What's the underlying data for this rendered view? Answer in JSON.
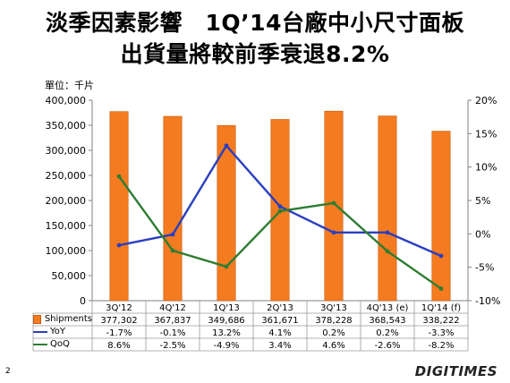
{
  "title_line1": "淡季因素影響　1Q’14台廠中小尺寸面板",
  "title_line2": "出貨量將較前季衰退8.2%",
  "unit_label": "單位：千片",
  "page_number": "2",
  "logo_text": "DIGITIMES",
  "chart_data": {
    "type": "bar",
    "categories": [
      "3Q'12",
      "4Q'12",
      "1Q'13",
      "2Q'13",
      "3Q'13",
      "4Q'13 (e)",
      "1Q'14 (f)"
    ],
    "series": [
      {
        "name": "Shipments",
        "type": "bar",
        "axis": "left",
        "color": "#f47b20",
        "values": [
          377302,
          367837,
          349686,
          361671,
          378228,
          368543,
          338222
        ],
        "labels": [
          "377,302",
          "367,837",
          "349,686",
          "361,671",
          "378,228",
          "368,543",
          "338,222"
        ]
      },
      {
        "name": "YoY",
        "type": "line",
        "axis": "right",
        "color": "#2a3fbf",
        "values": [
          -1.7,
          -0.1,
          13.2,
          4.1,
          0.2,
          0.2,
          -3.3
        ],
        "labels": [
          "-1.7%",
          "-0.1%",
          "13.2%",
          "4.1%",
          "0.2%",
          "0.2%",
          "-3.3%"
        ]
      },
      {
        "name": "QoQ",
        "type": "line",
        "axis": "right",
        "color": "#2e7d32",
        "values": [
          8.6,
          -2.5,
          -4.9,
          3.4,
          4.6,
          -2.6,
          -8.2
        ],
        "labels": [
          "8.6%",
          "-2.5%",
          "-4.9%",
          "3.4%",
          "4.6%",
          "-2.6%",
          "-8.2%"
        ]
      }
    ],
    "y_left": {
      "min": 0,
      "max": 400000,
      "step": 50000,
      "ticks": [
        "0",
        "50,000",
        "100,000",
        "150,000",
        "200,000",
        "250,000",
        "300,000",
        "350,000",
        "400,000"
      ]
    },
    "y_right": {
      "min": -10,
      "max": 20,
      "step": 5,
      "ticks": [
        "-10%",
        "-5%",
        "0%",
        "5%",
        "10%",
        "15%",
        "20%"
      ]
    },
    "grid": false,
    "legend": "data-table-bottom"
  }
}
